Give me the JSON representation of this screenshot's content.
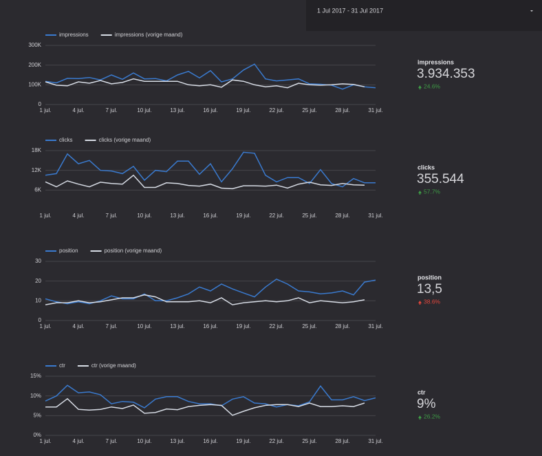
{
  "date_range": "1 Jul 2017 - 31 Jul 2017",
  "scorecards": [
    {
      "label": "impressions",
      "value": "3.934.353",
      "change": "24.6%",
      "color": "#3e9b46"
    },
    {
      "label": "clicks",
      "value": "355.544",
      "change": "57.7%",
      "color": "#3e9b46"
    },
    {
      "label": "position",
      "value": "13,5",
      "change": "38.6%",
      "color": "#e2463c"
    },
    {
      "label": "ctr",
      "value": "9%",
      "change": "26.2%",
      "color": "#3e9b46"
    }
  ],
  "chart_data": [
    {
      "type": "line",
      "categories": [
        "1 jul.",
        null,
        null,
        "4 jul.",
        null,
        null,
        "7 jul.",
        null,
        null,
        "10 jul.",
        null,
        null,
        "13 jul.",
        null,
        null,
        "16 jul.",
        null,
        null,
        "19 jul.",
        null,
        null,
        "22 jul.",
        null,
        null,
        "25 jul.",
        null,
        null,
        "28 jul.",
        null,
        null,
        "31 jul."
      ],
      "series": [
        {
          "name": "impressions",
          "color": "#3a7bd0",
          "values": [
            118000,
            110000,
            133000,
            132000,
            137000,
            125000,
            150000,
            128000,
            160000,
            130000,
            132000,
            120000,
            150000,
            168000,
            135000,
            172000,
            115000,
            130000,
            175000,
            205000,
            130000,
            120000,
            125000,
            130000,
            105000,
            103000,
            98000,
            78000,
            100000,
            90000,
            85000
          ]
        },
        {
          "name": "impressions (vorige maand)",
          "color": "#d8dde6",
          "values": [
            115000,
            98000,
            95000,
            115000,
            108000,
            122000,
            105000,
            112000,
            130000,
            118000,
            118000,
            118000,
            118000,
            100000,
            95000,
            100000,
            88000,
            125000,
            118000,
            100000,
            90000,
            95000,
            85000,
            108000,
            100000,
            98000,
            100000,
            105000,
            102000,
            90000,
            null
          ]
        }
      ],
      "ylim": [
        0,
        300000
      ],
      "yticks": [
        0,
        {
          "value": 100000,
          "label": "100K"
        },
        {
          "value": 200000,
          "label": "200K"
        },
        {
          "value": 300000,
          "label": "300K"
        }
      ],
      "grid": true
    },
    {
      "type": "line",
      "categories": [
        "1 jul.",
        null,
        null,
        "4 jul.",
        null,
        null,
        "7 jul.",
        null,
        null,
        "10 jul.",
        null,
        null,
        "13 jul.",
        null,
        null,
        "16 jul.",
        null,
        null,
        "19 jul.",
        null,
        null,
        "22 jul.",
        null,
        null,
        "25 jul.",
        null,
        null,
        "28 jul.",
        null,
        null,
        "31 jul."
      ],
      "series": [
        {
          "name": "clicks",
          "color": "#3a7bd0",
          "values": [
            10500,
            11000,
            17000,
            14000,
            15000,
            12000,
            11800,
            11000,
            13200,
            9000,
            12000,
            11600,
            14800,
            14800,
            10800,
            14000,
            8500,
            12500,
            17500,
            17200,
            10500,
            8500,
            9800,
            9800,
            8000,
            12200,
            8000,
            7000,
            9500,
            8200,
            8200
          ]
        },
        {
          "name": "clicks (vorige maand)",
          "color": "#d8dde6",
          "values": [
            8500,
            7000,
            8800,
            7800,
            7000,
            8400,
            8000,
            7800,
            10500,
            6800,
            6800,
            8200,
            8000,
            7400,
            7200,
            7800,
            6600,
            6400,
            7300,
            7300,
            7200,
            7500,
            6600,
            7800,
            8400,
            7600,
            7400,
            8000,
            7600,
            7500,
            null
          ]
        }
      ],
      "ylim": [
        0,
        18000
      ],
      "yticks": [
        {
          "value": 6000,
          "label": "6K"
        },
        {
          "value": 12000,
          "label": "12K"
        },
        {
          "value": 18000,
          "label": "18K"
        }
      ],
      "grid": true
    },
    {
      "type": "line",
      "categories": [
        "1 jul.",
        null,
        null,
        "4 jul.",
        null,
        null,
        "7 jul.",
        null,
        null,
        "10 jul.",
        null,
        null,
        "13 jul.",
        null,
        null,
        "16 jul.",
        null,
        null,
        "19 jul.",
        null,
        null,
        "22 jul.",
        null,
        null,
        "25 jul.",
        null,
        null,
        "28 jul.",
        null,
        null,
        "31 jul."
      ],
      "series": [
        {
          "name": "position",
          "color": "#3a7bd0",
          "values": [
            11,
            9.5,
            8.5,
            9.5,
            8.5,
            10,
            12.5,
            11,
            11,
            13.5,
            10,
            10,
            11.5,
            13.5,
            17,
            15,
            18.5,
            16,
            14,
            12,
            17,
            21,
            18.5,
            15,
            14.5,
            13.5,
            14,
            15,
            13,
            19.5,
            20.5
          ]
        },
        {
          "name": "position (vorige maand)",
          "color": "#d8dde6",
          "values": [
            8,
            9,
            9,
            10,
            9,
            9.5,
            10.5,
            11.5,
            11.5,
            13,
            12,
            9.5,
            9.5,
            9.5,
            10,
            9,
            11.5,
            8,
            9,
            9.5,
            10,
            9.5,
            10,
            11.5,
            9,
            10,
            9.5,
            9,
            9.5,
            10.5,
            null
          ]
        }
      ],
      "ylim": [
        0,
        30
      ],
      "yticks": [
        0,
        10,
        20,
        30
      ],
      "grid": true
    },
    {
      "type": "line",
      "categories": [
        "1 jul.",
        null,
        null,
        "4 jul.",
        null,
        null,
        "7 jul.",
        null,
        null,
        "10 jul.",
        null,
        null,
        "13 jul.",
        null,
        null,
        "16 jul.",
        null,
        null,
        "19 jul.",
        null,
        null,
        "22 jul.",
        null,
        null,
        "25 jul.",
        null,
        null,
        "28 jul.",
        null,
        null,
        "31 jul."
      ],
      "series": [
        {
          "name": "ctr",
          "color": "#3a7bd0",
          "values": [
            8.7,
            10,
            12.7,
            10.8,
            11,
            10.3,
            8,
            8.6,
            8.4,
            7,
            9.2,
            9.8,
            9.8,
            8.6,
            8,
            8,
            7.5,
            9.2,
            9.8,
            8.2,
            8,
            7.2,
            7.8,
            7.5,
            8.5,
            12.5,
            9,
            9,
            9.8,
            8.8,
            9.5
          ]
        },
        {
          "name": "ctr (vorige maand)",
          "color": "#d8dde6",
          "values": [
            7.2,
            7.2,
            9.3,
            6.6,
            6.4,
            6.6,
            7.2,
            6.8,
            7.7,
            5.6,
            5.8,
            6.7,
            6.5,
            7.3,
            7.6,
            7.8,
            7.6,
            5.1,
            6.1,
            7,
            7.6,
            7.8,
            7.8,
            7.3,
            8.2,
            7.3,
            7.3,
            7.5,
            7.3,
            8.2,
            null
          ]
        }
      ],
      "ylim": [
        0,
        15
      ],
      "yticks": [
        {
          "value": 0,
          "label": "0%"
        },
        {
          "value": 5,
          "label": "5%"
        },
        {
          "value": 10,
          "label": "10%"
        },
        {
          "value": 15,
          "label": "15%"
        }
      ],
      "grid": true
    }
  ]
}
